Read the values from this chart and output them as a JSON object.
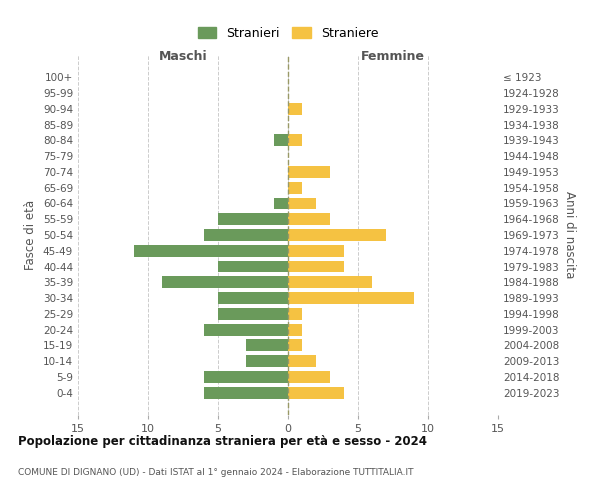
{
  "age_groups": [
    "100+",
    "95-99",
    "90-94",
    "85-89",
    "80-84",
    "75-79",
    "70-74",
    "65-69",
    "60-64",
    "55-59",
    "50-54",
    "45-49",
    "40-44",
    "35-39",
    "30-34",
    "25-29",
    "20-24",
    "15-19",
    "10-14",
    "5-9",
    "0-4"
  ],
  "birth_years": [
    "≤ 1923",
    "1924-1928",
    "1929-1933",
    "1934-1938",
    "1939-1943",
    "1944-1948",
    "1949-1953",
    "1954-1958",
    "1959-1963",
    "1964-1968",
    "1969-1973",
    "1974-1978",
    "1979-1983",
    "1984-1988",
    "1989-1993",
    "1994-1998",
    "1999-2003",
    "2004-2008",
    "2009-2013",
    "2014-2018",
    "2019-2023"
  ],
  "maschi": [
    0,
    0,
    0,
    0,
    1,
    0,
    0,
    0,
    1,
    5,
    6,
    11,
    5,
    9,
    5,
    5,
    6,
    3,
    3,
    6,
    6
  ],
  "femmine": [
    0,
    0,
    1,
    0,
    1,
    0,
    3,
    1,
    2,
    3,
    7,
    4,
    4,
    6,
    9,
    1,
    1,
    1,
    2,
    3,
    4
  ],
  "color_maschi": "#6a9a5b",
  "color_femmine": "#f5c242",
  "title": "Popolazione per cittadinanza straniera per età e sesso - 2024",
  "subtitle": "COMUNE DI DIGNANO (UD) - Dati ISTAT al 1° gennaio 2024 - Elaborazione TUTTITALIA.IT",
  "xlabel_left": "Maschi",
  "xlabel_right": "Femmine",
  "ylabel_left": "Fasce di età",
  "ylabel_right": "Anni di nascita",
  "legend_maschi": "Stranieri",
  "legend_femmine": "Straniere",
  "xlim": 15,
  "background_color": "#ffffff",
  "grid_color": "#cccccc"
}
